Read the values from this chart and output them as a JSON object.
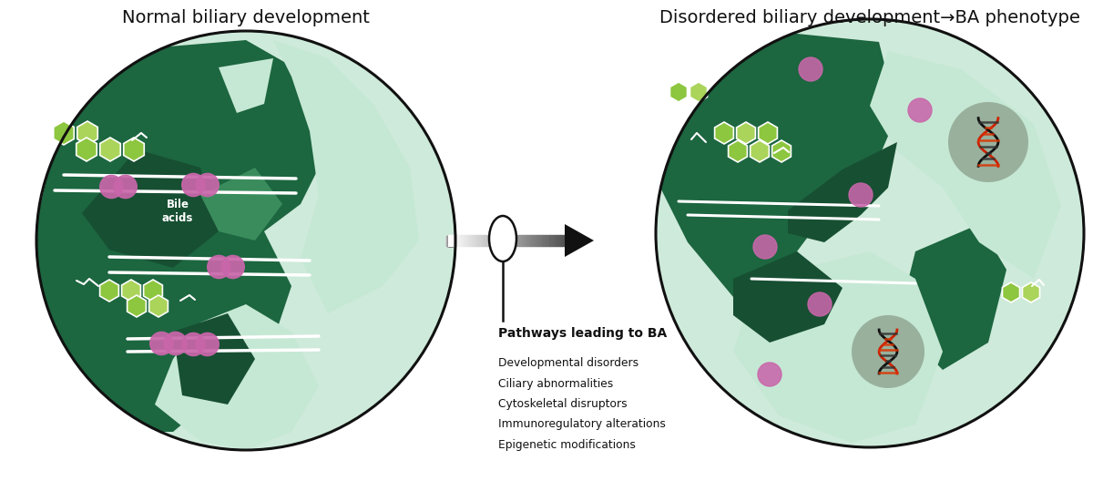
{
  "title_left": "Normal biliary development",
  "title_right": "Disordered biliary development→BA phenotype",
  "pathway_title": "Pathways leading to BA",
  "pathways": [
    "Developmental disorders",
    "Ciliary abnormalities",
    "Cytoskeletal disruptors",
    "Immunoregulatory alterations",
    "Epigenetic modifications"
  ],
  "bg_color": "#ffffff",
  "dark_green": "#1c6640",
  "dark_green2": "#174f32",
  "med_green": "#3a8c5c",
  "light_green_cell": "#c5e8d4",
  "pale_cell": "#b8dfc8",
  "very_pale": "#ceeada",
  "lime1": "#8dc63f",
  "lime2": "#aad45a",
  "purple": "#c966aa",
  "outline_color": "#111111",
  "white": "#ffffff",
  "gray_dna": "#8a9e8a",
  "dark_gray_dna": "#5a6a5a"
}
